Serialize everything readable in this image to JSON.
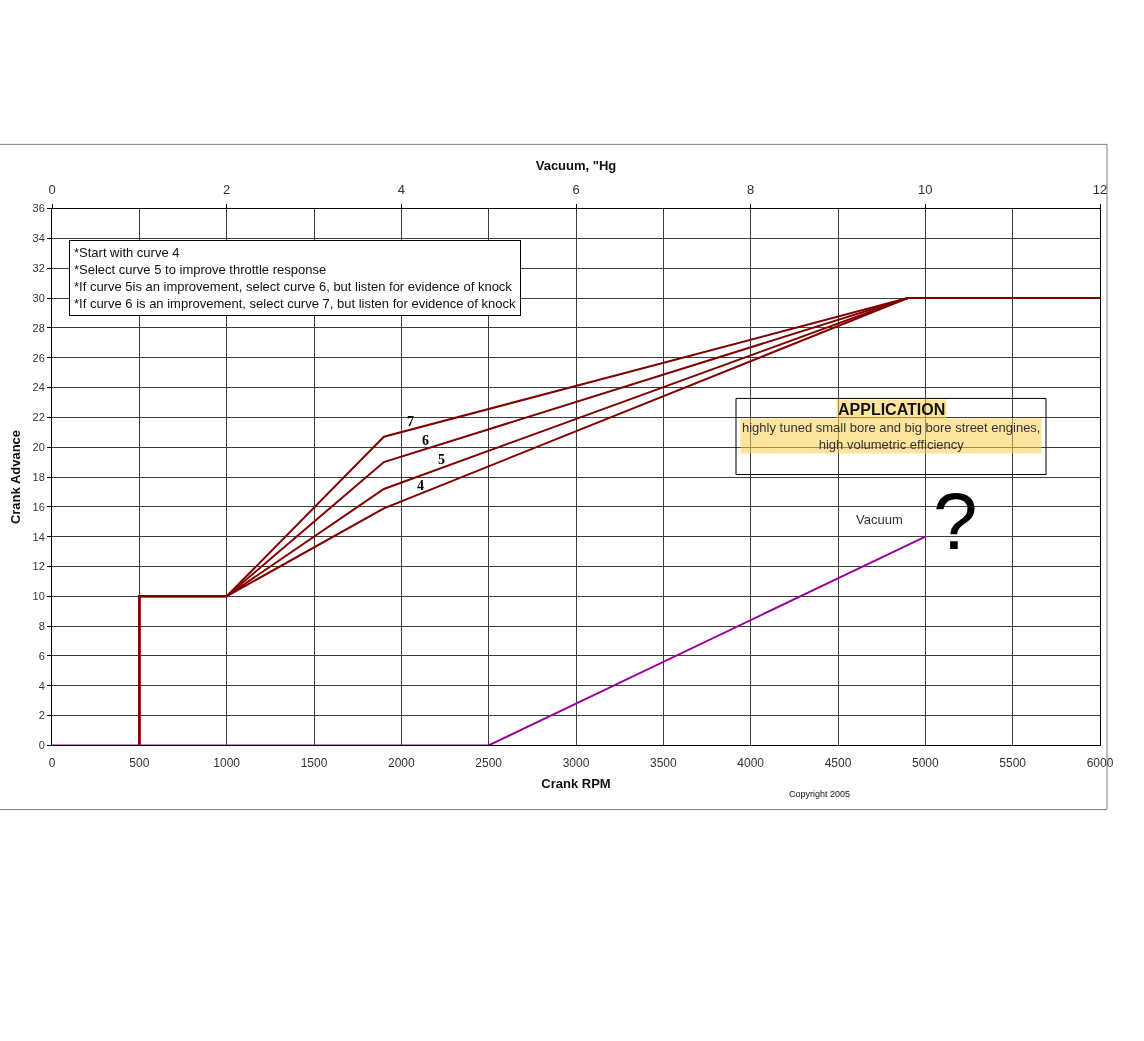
{
  "chart_data": {
    "type": "line",
    "xlabel": "Crank RPM",
    "ylabel": "Crank Advance",
    "x2label": "Vacuum, \"Hg",
    "x": [
      500,
      500,
      1000,
      1900,
      4900,
      6000
    ],
    "xlim": [
      0,
      6000
    ],
    "xticks": [
      0,
      500,
      1000,
      1500,
      2000,
      2500,
      3000,
      3500,
      4000,
      4500,
      5000,
      5500,
      6000
    ],
    "x2lim": [
      0,
      12
    ],
    "x2ticks": [
      0,
      2,
      4,
      6,
      8,
      10,
      12
    ],
    "ylim": [
      0,
      36
    ],
    "yticks": [
      0,
      2,
      4,
      6,
      8,
      10,
      12,
      14,
      16,
      18,
      20,
      22,
      24,
      26,
      28,
      30,
      32,
      34,
      36
    ],
    "grid": true,
    "series": [
      {
        "name": "4",
        "color": "#800000",
        "values": [
          0,
          10,
          10,
          15.9,
          30,
          30
        ]
      },
      {
        "name": "5",
        "color": "#800000",
        "values": [
          0,
          10,
          10,
          17.2,
          30,
          30
        ]
      },
      {
        "name": "6",
        "color": "#800000",
        "values": [
          0,
          10,
          10,
          19,
          30,
          30
        ]
      },
      {
        "name": "7",
        "color": "#800000",
        "values": [
          0,
          10,
          10,
          20.7,
          30,
          30
        ]
      },
      {
        "name": "Vacuum",
        "color": "#990099",
        "axis": "x2",
        "x": [
          0,
          5,
          10
        ],
        "values": [
          0,
          0,
          14
        ]
      }
    ],
    "annotations": [
      "*Start with curve 4\n*Select curve 5 to improve throttle response\n*If curve 5is an improvement, select curve 6, but listen for evidence of knock\n*If curve 6 is an improvement, select curve 7, but listen for evidence of knock",
      "APPLICATION",
      "highly tuned small bore and big bore street engines,\nhigh volumetric efficiency",
      "?",
      "Copyright 2005"
    ]
  }
}
